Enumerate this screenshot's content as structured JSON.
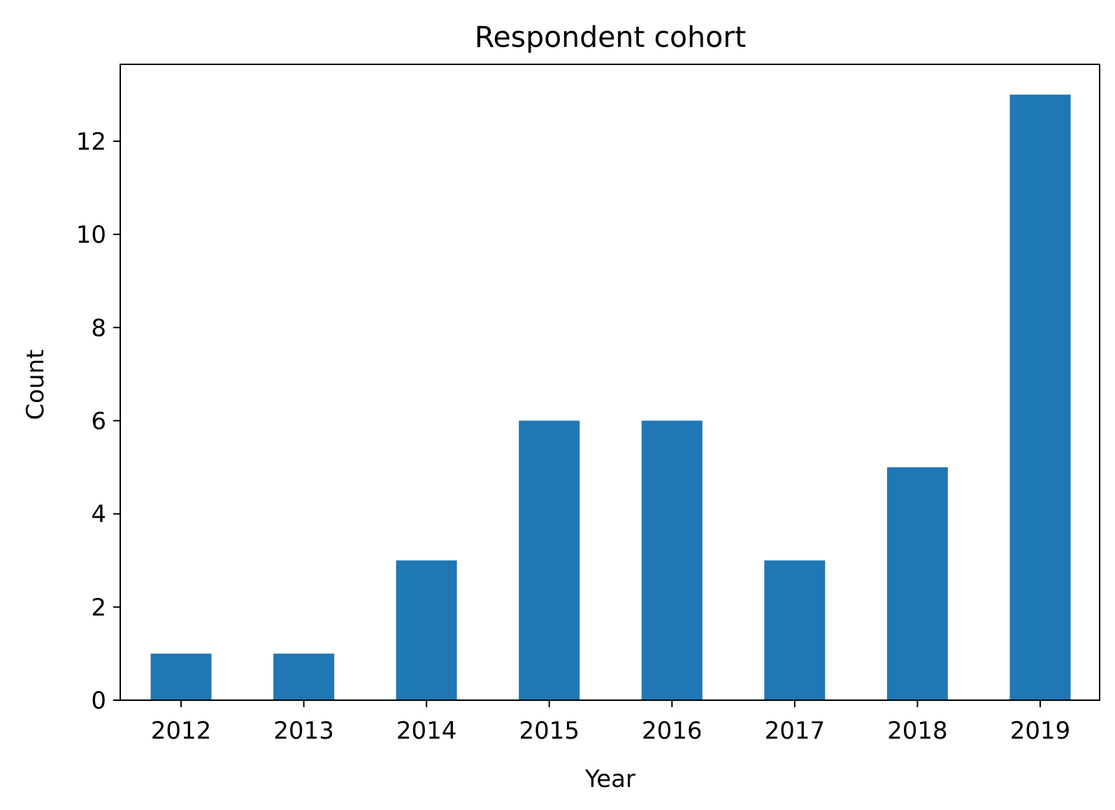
{
  "chart_data": {
    "type": "bar",
    "title": "Respondent cohort",
    "xlabel": "Year",
    "ylabel": "Count",
    "categories": [
      "2012",
      "2013",
      "2014",
      "2015",
      "2016",
      "2017",
      "2018",
      "2019"
    ],
    "values": [
      1,
      1,
      3,
      6,
      6,
      3,
      5,
      13
    ],
    "ylim": [
      0,
      13.65
    ],
    "yticks": [
      0,
      2,
      4,
      6,
      8,
      10,
      12
    ],
    "grid": false,
    "legend": "none",
    "bar_color": "#1f77b4"
  }
}
